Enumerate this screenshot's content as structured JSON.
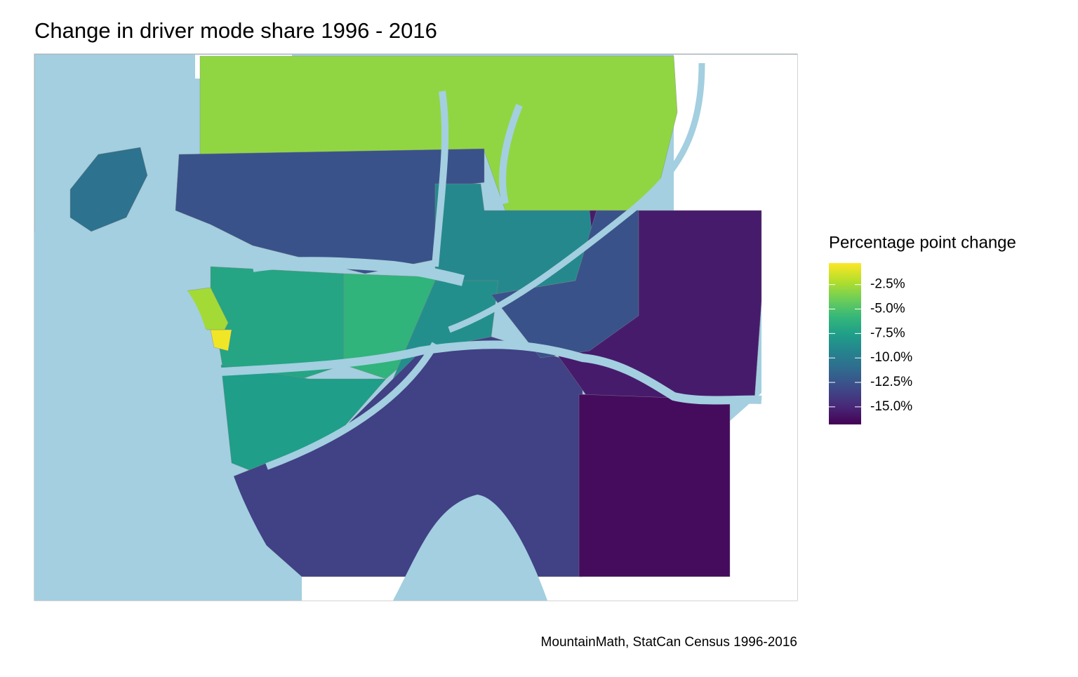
{
  "chart_data": {
    "type": "choropleth",
    "title": "Change in driver mode share 1996 - 2016",
    "caption": "MountainMath, StatCan Census 1996-2016",
    "legend_title": "Percentage point change",
    "colormap": "viridis",
    "water_color": "#a3cfe0",
    "clim": [
      -16.8,
      -0.3
    ],
    "cticks": [
      {
        "value": -2.5,
        "label": "-2.5%"
      },
      {
        "value": -5,
        "label": "-5.0%"
      },
      {
        "value": -7.5,
        "label": "-7.5%"
      },
      {
        "value": -10,
        "label": "-10.0%"
      },
      {
        "value": -12.5,
        "label": "-12.5%"
      },
      {
        "value": -15,
        "label": "-15.0%"
      }
    ],
    "regions": [
      {
        "value": -14
      },
      {
        "value": -4.5
      },
      {
        "value": -6.5
      },
      {
        "value": -8
      },
      {
        "value": -10
      },
      {
        "value": -11
      },
      {
        "value": -8.5
      },
      {
        "value": -9.5
      },
      {
        "value": -3.5
      },
      {
        "value": -1.5
      },
      {
        "value": -0.8
      },
      {
        "value": -16.5
      },
      {
        "value": -14.5
      },
      {
        "value": -4.5
      }
    ]
  }
}
